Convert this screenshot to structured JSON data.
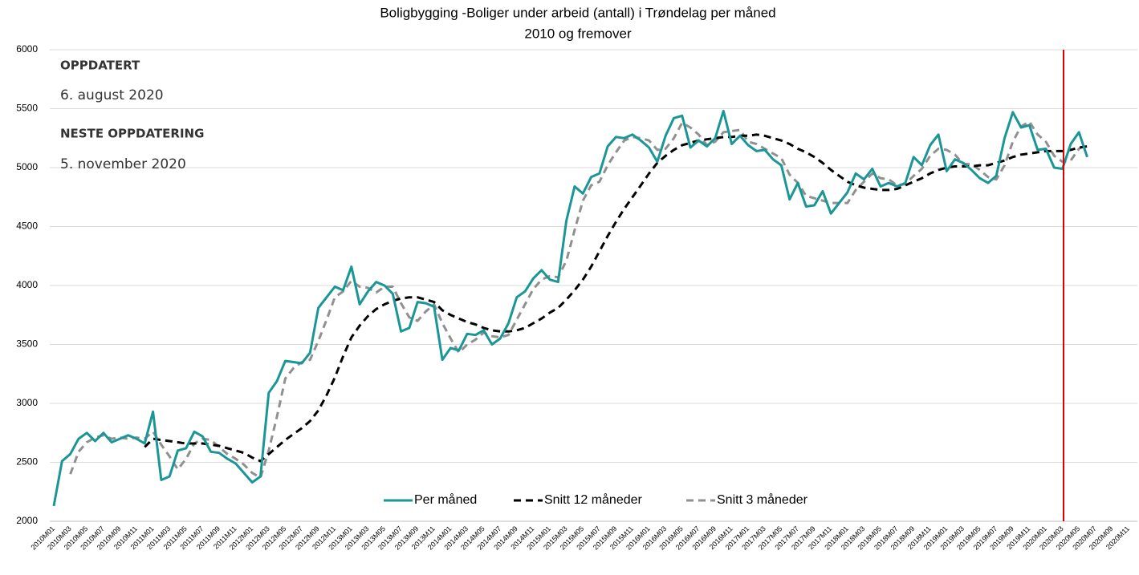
{
  "chart_data": {
    "type": "line",
    "title": "Boligbygging -Boliger under arbeid (antall)  i Trøndelag per måned",
    "subtitle": "2010 og  fremover",
    "annotations": [
      "OPPDATERT",
      "6. august 2020",
      "NESTE OPPDATERING",
      "5. november 2020"
    ],
    "categories": [
      "2010M01",
      null,
      "2010M03",
      null,
      "2010M05",
      null,
      "2010M07",
      null,
      "2010M09",
      null,
      "2010M11",
      null,
      "2011M01",
      null,
      "2011M03",
      null,
      "2011M05",
      null,
      "2011M07",
      null,
      "2011M09",
      null,
      "2011M11",
      null,
      "2012M01",
      null,
      "2012M03",
      null,
      "2012M05",
      null,
      "2012M07",
      null,
      "2012M09",
      null,
      "2012M11",
      null,
      "2013M01",
      null,
      "2013M03",
      null,
      "2013M05",
      null,
      "2013M07",
      null,
      "2013M09",
      null,
      "2013M11",
      null,
      "2014M01",
      null,
      "2014M03",
      null,
      "2014M05",
      null,
      "2014M07",
      null,
      "2014M09",
      null,
      "2014M11",
      null,
      "2015M01",
      null,
      "2015M03",
      null,
      "2015M05",
      null,
      "2015M07",
      null,
      "2015M09",
      null,
      "2015M11",
      null,
      "2016M01",
      null,
      "2016M03",
      null,
      "2016M05",
      null,
      "2016M07",
      null,
      "2016M09",
      null,
      "2016M11",
      null,
      "2017M01",
      null,
      "2017M03",
      null,
      "2017M05",
      null,
      "2017M07",
      null,
      "2017M09",
      null,
      "2017M11",
      null,
      "2018M01",
      null,
      "2018M03",
      null,
      "2018M05",
      null,
      "2018M07",
      null,
      "2018M09",
      null,
      "2018M11",
      null,
      "2019M01",
      null,
      "2019M03",
      null,
      "2019M05",
      null,
      "2019M07",
      null,
      "2019M09",
      null,
      "2019M11",
      null,
      "2020M01",
      null,
      "2020M03",
      null,
      "2020M05",
      null,
      "2020M07",
      null,
      "2020M09",
      null,
      "2020M11",
      null
    ],
    "series": [
      {
        "name": "Per måned",
        "color": "#1a9696",
        "line_style": "solid",
        "values": [
          2130,
          2510,
          2570,
          2700,
          2750,
          2680,
          2750,
          2670,
          2700,
          2730,
          2700,
          2660,
          2930,
          2350,
          2380,
          2600,
          2620,
          2760,
          2720,
          2590,
          2580,
          2530,
          2490,
          2410,
          2330,
          2380,
          3090,
          3190,
          3360,
          3350,
          3340,
          3430,
          3810,
          3900,
          3990,
          3960,
          4160,
          3840,
          3950,
          4030,
          4000,
          3930,
          3610,
          3640,
          3860,
          3850,
          3820,
          3370,
          3470,
          3450,
          3590,
          3580,
          3620,
          3500,
          3550,
          3680,
          3900,
          3950,
          4060,
          4130,
          4050,
          4030,
          4550,
          4840,
          4780,
          4920,
          4950,
          5180,
          5260,
          5250,
          5280,
          5230,
          5170,
          5050,
          5270,
          5420,
          5440,
          5170,
          5230,
          5180,
          5250,
          5480,
          5200,
          5270,
          5190,
          5140,
          5150,
          5070,
          5020,
          4730,
          4870,
          4670,
          4680,
          4800,
          4610,
          4700,
          4790,
          4950,
          4900,
          4990,
          4840,
          4870,
          4840,
          4870,
          5090,
          5020,
          5190,
          5280,
          4970,
          5070,
          5040,
          4980,
          4910,
          4870,
          4930,
          5250,
          5470,
          5340,
          5360,
          5150,
          5160,
          5000,
          4990,
          5200,
          5300,
          5090,
          null,
          null,
          null,
          null,
          null,
          null
        ]
      },
      {
        "name": "Snitt 12 måneder",
        "color": "#000000",
        "line_style": "dashed",
        "values": [
          null,
          null,
          null,
          null,
          null,
          null,
          null,
          null,
          null,
          null,
          null,
          2630,
          2700,
          2690,
          2680,
          2670,
          2660,
          2660,
          2660,
          2650,
          2640,
          2620,
          2600,
          2580,
          2540,
          2510,
          2570,
          2630,
          2690,
          2740,
          2790,
          2850,
          2940,
          3070,
          3220,
          3400,
          3560,
          3660,
          3740,
          3800,
          3840,
          3870,
          3890,
          3900,
          3900,
          3880,
          3860,
          3790,
          3750,
          3720,
          3690,
          3670,
          3640,
          3620,
          3610,
          3610,
          3620,
          3640,
          3680,
          3720,
          3770,
          3810,
          3880,
          3960,
          4050,
          4160,
          4290,
          4420,
          4540,
          4650,
          4750,
          4850,
          4950,
          5040,
          5100,
          5150,
          5190,
          5210,
          5230,
          5240,
          5250,
          5260,
          5260,
          5270,
          5270,
          5280,
          5270,
          5250,
          5230,
          5200,
          5160,
          5130,
          5090,
          5040,
          4980,
          4930,
          4880,
          4850,
          4830,
          4820,
          4810,
          4810,
          4820,
          4850,
          4880,
          4910,
          4950,
          4980,
          5000,
          5010,
          5010,
          5010,
          5020,
          5020,
          5040,
          5060,
          5090,
          5110,
          5120,
          5130,
          5140,
          5140,
          5140,
          5150,
          5170,
          5180,
          null,
          null,
          null,
          null,
          null,
          null
        ]
      },
      {
        "name": "Snitt 3 måneder",
        "color": "#909090",
        "line_style": "dashed",
        "values": [
          null,
          null,
          2400,
          2590,
          2670,
          2710,
          2730,
          2700,
          2710,
          2700,
          2710,
          2700,
          2760,
          2650,
          2550,
          2440,
          2530,
          2660,
          2700,
          2690,
          2630,
          2570,
          2530,
          2480,
          2410,
          2370,
          2600,
          2890,
          3210,
          3300,
          3350,
          3370,
          3530,
          3710,
          3900,
          3950,
          4040,
          3990,
          3980,
          3940,
          3990,
          3990,
          3850,
          3730,
          3700,
          3780,
          3840,
          3680,
          3550,
          3430,
          3500,
          3540,
          3600,
          3570,
          3560,
          3580,
          3710,
          3840,
          3970,
          4050,
          4080,
          4070,
          4210,
          4470,
          4720,
          4850,
          4880,
          5020,
          5130,
          5230,
          5260,
          5250,
          5230,
          5150,
          5160,
          5250,
          5380,
          5340,
          5280,
          5190,
          5220,
          5300,
          5310,
          5320,
          5220,
          5200,
          5160,
          5120,
          5080,
          4940,
          4870,
          4760,
          4740,
          4720,
          4700,
          4700,
          4700,
          4810,
          4880,
          4950,
          4910,
          4900,
          4850,
          4860,
          4930,
          4990,
          5100,
          5160,
          5150,
          5110,
          5030,
          5030,
          4980,
          4920,
          4900,
          5020,
          5220,
          5350,
          5390,
          5280,
          5220,
          5100,
          5050,
          5060,
          5160,
          5200,
          null,
          null,
          null,
          null,
          null,
          null
        ]
      }
    ],
    "ylim": [
      2000,
      6000
    ],
    "yticks": [
      2000,
      2500,
      3000,
      3500,
      4000,
      4500,
      5000,
      5500,
      6000
    ],
    "grid": true,
    "legend": "bottom"
  }
}
